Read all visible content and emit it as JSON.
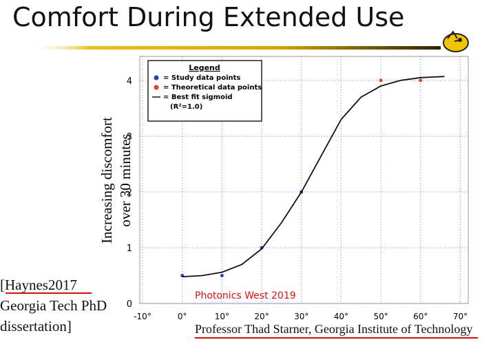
{
  "slide": {
    "title": "Comfort During Extended Use",
    "citation": [
      "[Haynes2017",
      "Georgia Tech PhD",
      "dissertation]"
    ],
    "event": "Photonics West 2019",
    "footer": "Professor Thad Starner, Georgia Institute of Technology"
  },
  "chart_data": {
    "type": "scatter",
    "y_label": [
      "Increasing discomfort",
      "over 30 minutes"
    ],
    "legend_title": "Legend",
    "legend_note": "(R²=1.0)",
    "legend_position": "upper-left",
    "xlim": [
      -10.7,
      72
    ],
    "ylim": [
      0,
      4.43
    ],
    "xticks": [
      {
        "value": -10,
        "label": "-10°"
      },
      {
        "value": 0,
        "label": "0°"
      },
      {
        "value": 10,
        "label": "10°"
      },
      {
        "value": 20,
        "label": "20°"
      },
      {
        "value": 30,
        "label": "30°"
      },
      {
        "value": 40,
        "label": "40°"
      },
      {
        "value": 50,
        "label": "50°"
      },
      {
        "value": 60,
        "label": "60°"
      },
      {
        "value": 70,
        "label": "70°"
      }
    ],
    "yticks": [
      0,
      1,
      2,
      3,
      4
    ],
    "grid": true,
    "series": [
      {
        "name": "= Study data points",
        "mode": "markers",
        "color": "#2b3fb8",
        "x": [
          0,
          10,
          20,
          30
        ],
        "values": [
          0.5,
          0.5,
          1,
          2
        ]
      },
      {
        "name": "= Theoretical data points",
        "mode": "markers",
        "color": "#e8401c",
        "x": [
          50,
          60
        ],
        "values": [
          4,
          4
        ]
      },
      {
        "name": "= Best fit sigmoid",
        "mode": "line",
        "color": "#111111",
        "x": [
          0,
          5,
          10,
          15,
          20,
          25,
          30,
          35,
          40,
          45,
          50,
          55,
          60,
          66
        ],
        "values": [
          0.48,
          0.5,
          0.56,
          0.7,
          0.98,
          1.45,
          2.0,
          2.65,
          3.3,
          3.7,
          3.9,
          4.0,
          4.05,
          4.07
        ]
      }
    ]
  }
}
